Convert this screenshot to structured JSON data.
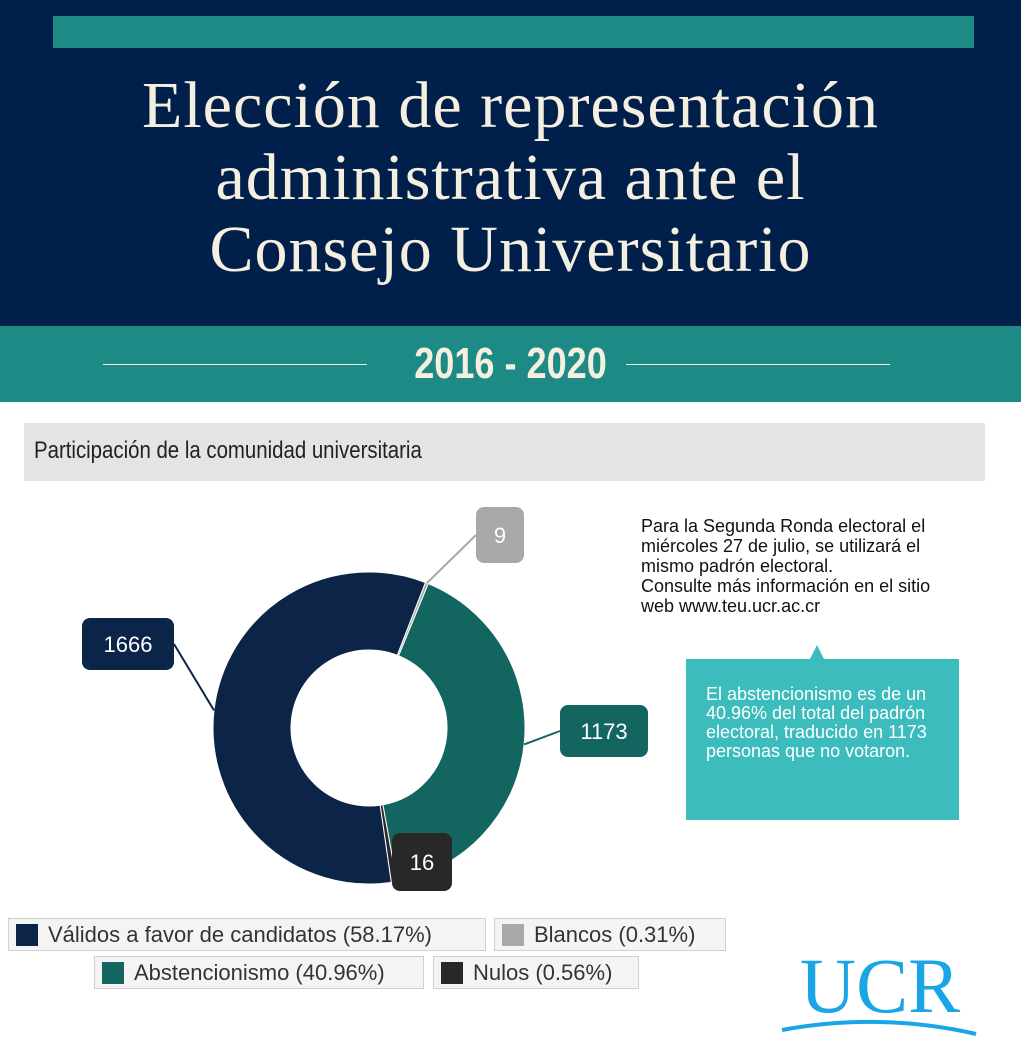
{
  "header": {
    "title_lines": [
      "Elección de representación",
      "administrativa ante el",
      "Consejo Universitario"
    ],
    "years": "2016 - 2020"
  },
  "section": {
    "heading": "Participación de la comunidad universitaria"
  },
  "note": {
    "lines": [
      "Para la Segunda Ronda electoral el",
      "miércoles 27 de julio, se utilizará el",
      "mismo padrón electoral.",
      "Consulte más información en el sitio",
      "web   www.teu.ucr.ac.cr"
    ]
  },
  "abstention_box": {
    "text": "El abstencionismo es de un 40.96% del total del padrón electoral, traducido en 1173 personas que no votaron."
  },
  "logo": {
    "text": "UCR"
  },
  "chart_data": {
    "type": "pie",
    "donut": true,
    "series": [
      {
        "name": "Válidos a favor de candidatos (58.17%)",
        "value": 1666,
        "label": "1666",
        "color": "#0b2448"
      },
      {
        "name": "Blancos (0.31%)",
        "value": 9,
        "label": "9",
        "color": "#a9a9a9"
      },
      {
        "name": "Abstencionismo (40.96%)",
        "value": 1173,
        "label": "1173",
        "color": "#13655f"
      },
      {
        "name": "Nulos (0.56%)",
        "value": 16,
        "label": "16",
        "color": "#282828"
      }
    ]
  },
  "colors": {
    "header_bg": "#001f4b",
    "accent": "#1e8a86",
    "callout_teal": "#3cbcbc",
    "logo_blue": "#1aa6e4"
  }
}
